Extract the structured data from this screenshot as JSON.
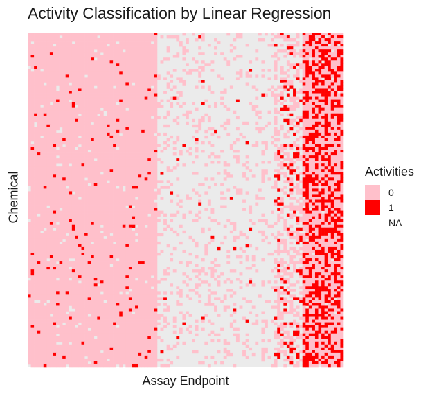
{
  "chart_data": {
    "type": "heatmap",
    "title": "Activity Classification by Linear Regression",
    "xlabel": "Assay Endpoint",
    "ylabel": "Chemical",
    "legend": {
      "title": "Activities",
      "position": "right",
      "entries": [
        {
          "label": "0",
          "color": "#FFC0CB"
        },
        {
          "label": "1",
          "color": "#FF0000"
        },
        {
          "label": "NA",
          "color": "#EBEBEB"
        }
      ]
    },
    "x_ticks": "none",
    "y_ticks": "none",
    "grid": false,
    "n_rows": 120,
    "n_cols": 100,
    "value_encoding": "per-column rates: 0 inactive, 1 active, NA missing",
    "column_profile": [
      {
        "cols": [
          0,
          40
        ],
        "active_rate": 0.02,
        "na_rate": 0.03
      },
      {
        "cols": [
          41,
          77
        ],
        "active_rate": 0.05,
        "na_rate": 0.82
      },
      {
        "cols": [
          78,
          86
        ],
        "active_rate": 0.2,
        "na_rate": 0.5
      },
      {
        "cols": [
          87,
          99
        ],
        "active_rate": 0.45,
        "na_rate": 0.02
      }
    ]
  },
  "colors": {
    "inactive": "#FFC0CB",
    "active": "#FF0000",
    "missing": "#EBEBEB"
  }
}
